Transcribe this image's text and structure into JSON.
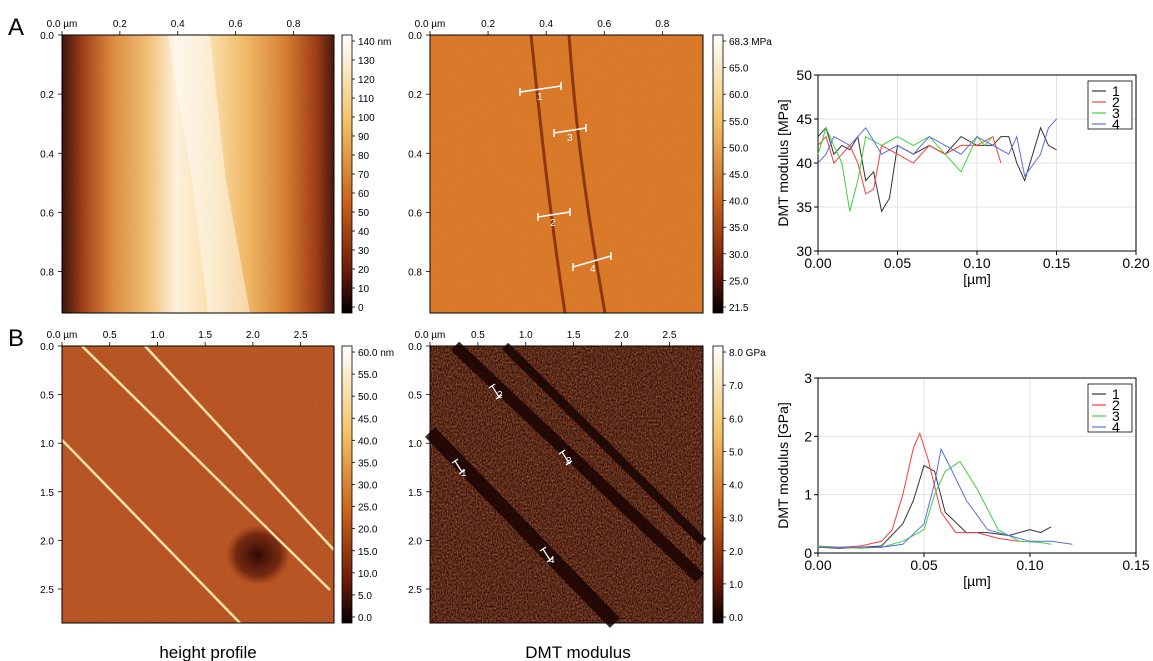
{
  "panels": {
    "A": {
      "letter": "A",
      "height_map": {
        "x_ticks": [
          "0.0 µm",
          "0.2",
          "0.4",
          "0.6",
          "0.8"
        ],
        "y_ticks": [
          "0.0",
          "0.2",
          "0.4",
          "0.6",
          "0.8"
        ],
        "scale_ticks": [
          "140 nm",
          "130",
          "120",
          "110",
          "100",
          "90",
          "80",
          "70",
          "60",
          "50",
          "40",
          "30",
          "20",
          "10",
          "0"
        ]
      },
      "modulus_map": {
        "x_ticks": [
          "0.0 µm",
          "0.2",
          "0.4",
          "0.6",
          "0.8"
        ],
        "y_ticks": [
          "0.0",
          "0.2",
          "0.4",
          "0.6",
          "0.8"
        ],
        "scale_ticks": [
          "68.3 MPa",
          "65.0",
          "60.0",
          "55.0",
          "50.0",
          "45.0",
          "40.0",
          "35.0",
          "30.0",
          "25.0",
          "21.5"
        ],
        "profile_labels": [
          "1",
          "2",
          "3",
          "4"
        ]
      }
    },
    "B": {
      "letter": "B",
      "height_map": {
        "x_ticks": [
          "0.0 µm",
          "0.5",
          "1.0",
          "1.5",
          "2.0",
          "2.5"
        ],
        "y_ticks": [
          "0.0",
          "0.5",
          "1.0",
          "1.5",
          "2.0",
          "2.5"
        ],
        "scale_ticks": [
          "60.0 nm",
          "55.0",
          "50.0",
          "45.0",
          "40.0",
          "35.0",
          "30.0",
          "25.0",
          "20.0",
          "15.0",
          "10.0",
          "5.0",
          "0.0"
        ]
      },
      "modulus_map": {
        "x_ticks": [
          "0.0 µm",
          "0.5",
          "1.0",
          "1.5",
          "2.0",
          "2.5"
        ],
        "y_ticks": [
          "0.0",
          "0.5",
          "1.0",
          "1.5",
          "2.0",
          "2.5"
        ],
        "scale_ticks": [
          "8.0 GPa",
          "7.0",
          "6.0",
          "5.0",
          "4.0",
          "3.0",
          "2.0",
          "1.0",
          "0.0"
        ],
        "profile_labels": [
          "1",
          "2",
          "3",
          "4"
        ]
      }
    }
  },
  "captions": {
    "left": "height profile",
    "middle": "DMT modulus"
  },
  "series_colors": [
    "#333333",
    "#ff3b3b",
    "#3fd13f",
    "#5a6fe0"
  ],
  "chart_data": [
    {
      "type": "line",
      "title": "",
      "xlabel": "[µm]",
      "ylabel": "DMT modulus [MPa]",
      "xlim": [
        0,
        0.2
      ],
      "ylim": [
        30,
        50
      ],
      "x_tick_labels": [
        "0.00",
        "0.05",
        "0.10",
        "0.15",
        "0.20"
      ],
      "y_tick_labels": [
        "30",
        "35",
        "40",
        "45",
        "50"
      ],
      "grid": true,
      "legend_position": "top-right",
      "series": [
        {
          "name": "1",
          "x": [
            0.0,
            0.005,
            0.01,
            0.015,
            0.02,
            0.025,
            0.03,
            0.035,
            0.04,
            0.045,
            0.05,
            0.06,
            0.07,
            0.08,
            0.09,
            0.1,
            0.11,
            0.115,
            0.12,
            0.125,
            0.13,
            0.135,
            0.14,
            0.145,
            0.15
          ],
          "y": [
            43,
            44,
            41,
            42,
            41.5,
            43,
            38,
            39,
            34.5,
            36,
            42,
            41,
            42,
            41,
            43,
            42,
            42,
            43,
            43,
            40,
            38,
            41,
            44,
            42,
            41.5
          ]
        },
        {
          "name": "2",
          "x": [
            0.0,
            0.005,
            0.01,
            0.015,
            0.02,
            0.025,
            0.03,
            0.035,
            0.04,
            0.05,
            0.06,
            0.07,
            0.08,
            0.09,
            0.1,
            0.11,
            0.115
          ],
          "y": [
            42,
            43,
            40,
            41,
            42,
            40,
            36.5,
            37,
            42,
            41,
            40,
            42,
            41,
            42,
            42,
            43,
            40
          ]
        },
        {
          "name": "3",
          "x": [
            0.0,
            0.005,
            0.01,
            0.015,
            0.02,
            0.025,
            0.03,
            0.04,
            0.05,
            0.06,
            0.07,
            0.08,
            0.09,
            0.1,
            0.105,
            0.11
          ],
          "y": [
            41,
            44,
            42,
            40,
            34.5,
            38,
            43,
            42,
            43,
            42,
            43,
            41,
            39,
            43,
            42,
            43
          ]
        },
        {
          "name": "4",
          "x": [
            0.0,
            0.005,
            0.01,
            0.02,
            0.03,
            0.04,
            0.05,
            0.06,
            0.07,
            0.08,
            0.09,
            0.1,
            0.11,
            0.12,
            0.125,
            0.13,
            0.14,
            0.145,
            0.15
          ],
          "y": [
            40,
            41,
            43,
            42,
            44,
            41,
            42,
            41,
            43,
            42,
            41,
            43,
            42,
            41,
            43,
            38.5,
            41,
            44,
            45
          ]
        }
      ]
    },
    {
      "type": "line",
      "title": "",
      "xlabel": "[µm]",
      "ylabel": "DMT modulus [GPa]",
      "xlim": [
        0,
        0.15
      ],
      "ylim": [
        0,
        3
      ],
      "x_tick_labels": [
        "0.00",
        "0.05",
        "0.10",
        "0.15"
      ],
      "y_tick_labels": [
        "0",
        "1",
        "2",
        "3"
      ],
      "grid": true,
      "legend_position": "top-right",
      "series": [
        {
          "name": "1",
          "x": [
            0.0,
            0.01,
            0.02,
            0.03,
            0.04,
            0.045,
            0.05,
            0.055,
            0.06,
            0.07,
            0.08,
            0.09,
            0.1,
            0.105,
            0.11
          ],
          "y": [
            0.1,
            0.08,
            0.1,
            0.12,
            0.5,
            0.9,
            1.5,
            1.4,
            0.7,
            0.35,
            0.35,
            0.3,
            0.4,
            0.35,
            0.45
          ]
        },
        {
          "name": "2",
          "x": [
            0.0,
            0.01,
            0.02,
            0.03,
            0.035,
            0.04,
            0.045,
            0.048,
            0.052,
            0.058,
            0.065,
            0.075,
            0.085,
            0.095
          ],
          "y": [
            0.1,
            0.1,
            0.12,
            0.2,
            0.4,
            1.0,
            1.8,
            2.05,
            1.6,
            0.7,
            0.35,
            0.35,
            0.25,
            0.2
          ]
        },
        {
          "name": "3",
          "x": [
            0.0,
            0.01,
            0.02,
            0.03,
            0.04,
            0.05,
            0.055,
            0.06,
            0.067,
            0.075,
            0.085,
            0.095,
            0.105,
            0.11
          ],
          "y": [
            0.12,
            0.1,
            0.08,
            0.1,
            0.2,
            0.4,
            1.0,
            1.4,
            1.57,
            1.1,
            0.4,
            0.2,
            0.18,
            0.15
          ]
        },
        {
          "name": "4",
          "x": [
            0.0,
            0.01,
            0.02,
            0.03,
            0.04,
            0.05,
            0.055,
            0.058,
            0.062,
            0.07,
            0.08,
            0.09,
            0.1,
            0.11,
            0.12
          ],
          "y": [
            0.1,
            0.1,
            0.1,
            0.1,
            0.15,
            0.5,
            1.2,
            1.78,
            1.5,
            0.9,
            0.4,
            0.3,
            0.2,
            0.2,
            0.15
          ]
        }
      ]
    }
  ]
}
